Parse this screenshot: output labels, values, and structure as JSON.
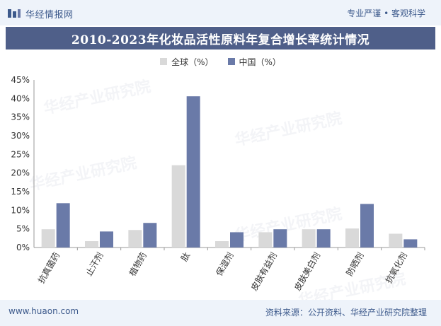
{
  "header": {
    "brand_name": "华经情报网",
    "slogan": "专业严谨 • 客观科学"
  },
  "watermark": {
    "text": "华经产业研究院"
  },
  "footer": {
    "site": "www.huaon.com",
    "source": "资料来源：公开资料、华经产业研究院整理"
  },
  "colors": {
    "brand": "#3d5a8c",
    "title_bar": "#4f5f89",
    "global_bar": "#d9d9d9",
    "china_bar": "#6a7aa8"
  },
  "chart_data": {
    "type": "bar",
    "title": "2010-2023年化妆品活性原料年复合增长率统计情况",
    "categories": [
      "抗真菌药",
      "止汗剂",
      "植物药",
      "肽",
      "保湿剂",
      "皮肤有益剂",
      "皮肤美白剂",
      "防晒剂",
      "抗氧化剂"
    ],
    "series": [
      {
        "name": "全球（%）",
        "color": "#d9d9d9",
        "values": [
          4.9,
          1.7,
          4.7,
          22.1,
          1.7,
          4.1,
          4.9,
          5.1,
          3.7
        ]
      },
      {
        "name": "中国（%）",
        "color": "#6a7aa8",
        "values": [
          11.9,
          4.3,
          6.6,
          40.6,
          4.1,
          4.9,
          4.9,
          11.7,
          2.2
        ]
      }
    ],
    "ylim": [
      0,
      45
    ],
    "yticks": [
      0,
      5,
      10,
      15,
      20,
      25,
      30,
      35,
      40,
      45
    ],
    "ytick_suffix": "%",
    "xlabel": "",
    "ylabel": "",
    "grid": false,
    "legend_position": "top"
  }
}
